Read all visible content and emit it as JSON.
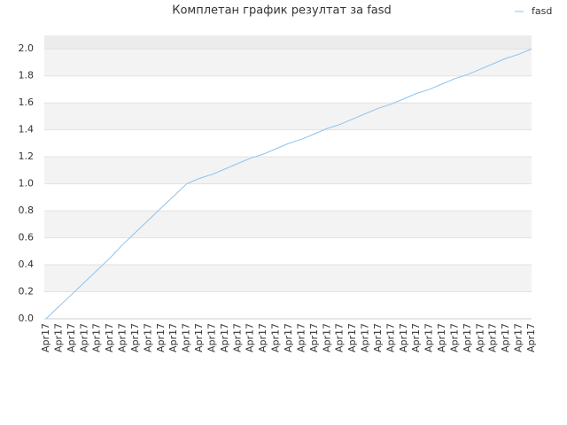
{
  "chart_data": {
    "type": "line",
    "title": "Комплетан график резултат за fasd",
    "categories": [
      "Apr17",
      "Apr17",
      "Apr17",
      "Apr17",
      "Apr17",
      "Apr17",
      "Apr17",
      "Apr17",
      "Apr17",
      "Apr17",
      "Apr17",
      "Apr17",
      "Apr17",
      "Apr17",
      "Apr17",
      "Apr17",
      "Apr17",
      "Apr17",
      "Apr17",
      "Apr17",
      "Apr17",
      "Apr17",
      "Apr17",
      "Apr17",
      "Apr17",
      "Apr17",
      "Apr17",
      "Apr17",
      "Apr17",
      "Apr17",
      "Apr17",
      "Apr17",
      "Apr17",
      "Apr17",
      "Apr17",
      "Apr17",
      "Apr17",
      "Apr17",
      "Apr17"
    ],
    "series": [
      {
        "name": "fasd",
        "color": "#8ec3ee",
        "values": [
          0,
          0.09,
          0.18,
          0.27,
          0.36,
          0.45,
          0.55,
          0.64,
          0.73,
          0.82,
          0.91,
          1.0,
          1.04,
          1.07,
          1.11,
          1.15,
          1.19,
          1.22,
          1.26,
          1.3,
          1.33,
          1.37,
          1.41,
          1.44,
          1.48,
          1.52,
          1.56,
          1.59,
          1.63,
          1.67,
          1.7,
          1.74,
          1.78,
          1.81,
          1.85,
          1.89,
          1.93,
          1.96,
          2.0
        ]
      }
    ],
    "ylim": [
      0,
      2.1
    ],
    "yticks": [
      {
        "value": 0,
        "label": "0.0"
      },
      0.2,
      0.4,
      0.6,
      0.8,
      {
        "value": 1,
        "label": "1.0"
      },
      1.2,
      1.4,
      1.6,
      1.8,
      {
        "value": 2,
        "label": "2.0"
      }
    ],
    "grid": true,
    "legend": "top-right"
  }
}
